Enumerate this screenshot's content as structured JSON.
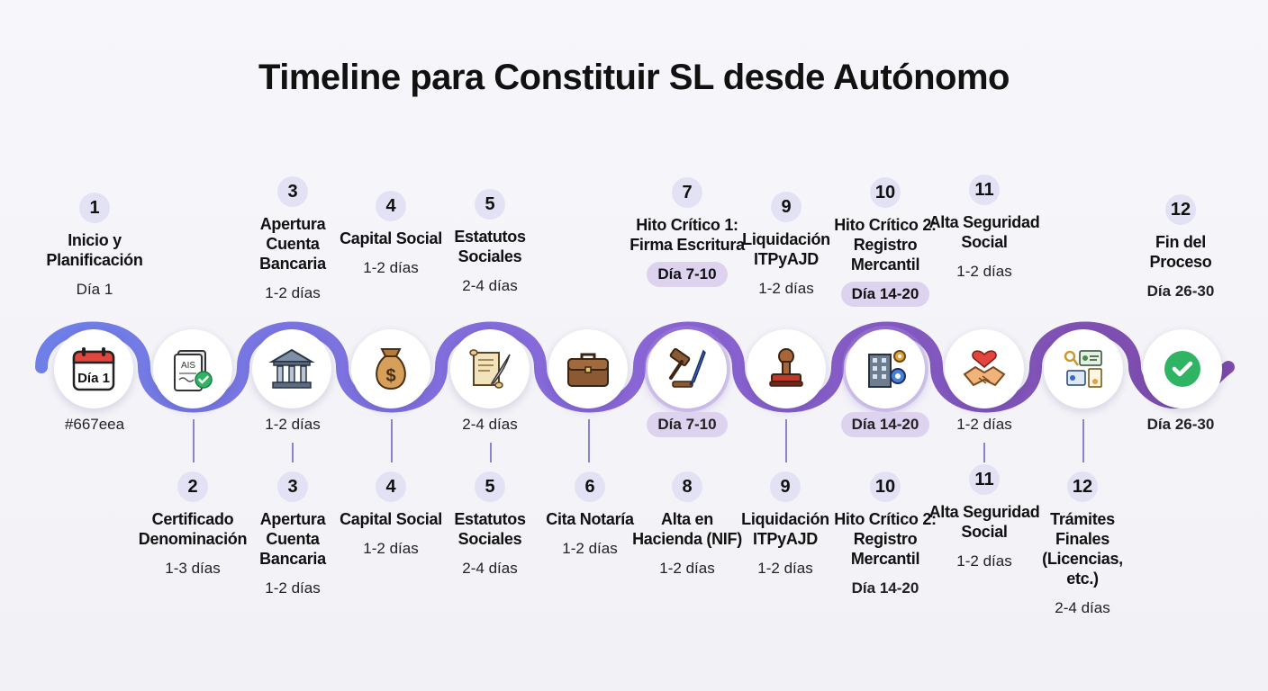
{
  "title": "Timeline para Constituir SL desde Autónomo",
  "icons": {
    "calendar_label": "Día 1",
    "certificate_label": "AIS"
  },
  "top_steps": [
    {
      "num": "1",
      "label": "Inicio y Planificación",
      "dur": "Día 1"
    },
    {
      "num": "3",
      "label": "Apertura Cuenta Bancaria",
      "dur": "1-2 días"
    },
    {
      "num": "4",
      "label": "Capital Social",
      "dur": "1-2 días"
    },
    {
      "num": "5",
      "label": "Estatutos Sociales",
      "dur": "2-4 días"
    },
    {
      "num": "7",
      "label": "Hito Crítico 1: Firma Escritura",
      "dur": "Día 7-10"
    },
    {
      "num": "9",
      "label": "Liquidación ITPyAJD",
      "dur": "1-2 días"
    },
    {
      "num": "10",
      "label": "Hito Crítico 2: Registro Mercantil",
      "dur": "Día 14-20"
    },
    {
      "num": "11",
      "label": "Alta Seguridad Social",
      "dur": "1-2 días"
    },
    {
      "num": "12",
      "label": "Fin del Proceso",
      "dur": "Día 26-30"
    }
  ],
  "mid_labels": [
    "#667eea",
    "1-2 días",
    "2-4 días",
    "Día 7-10",
    "Día 14-20",
    "1-2 días",
    "Día 26-30"
  ],
  "bottom_steps": [
    {
      "num": "2",
      "label": "Certificado Denominación",
      "dur": "1-3 días"
    },
    {
      "num": "3",
      "label": "Apertura Cuenta Bancaria",
      "dur": "1-2 días"
    },
    {
      "num": "4",
      "label": "Capital Social",
      "dur": "1-2 días"
    },
    {
      "num": "5",
      "label": "Estatutos Sociales",
      "dur": "2-4 días"
    },
    {
      "num": "6",
      "label": "Cita Notaría",
      "dur": "1-2 días"
    },
    {
      "num": "8",
      "label": "Alta en Hacienda (NIF)",
      "dur": "1-2 días"
    },
    {
      "num": "9",
      "label": "Liquidación ITPyAJD",
      "dur": "1-2 días"
    },
    {
      "num": "10",
      "label": "Hito Crítico 2: Registro Mercantil",
      "dur": "Día 14-20"
    },
    {
      "num": "11",
      "label": "Alta Seguridad Social",
      "dur": "1-2 días"
    },
    {
      "num": "12",
      "label": "Trámites Finales (Licencias, etc.)",
      "dur": "2-4 días"
    }
  ],
  "colors": {
    "track_start": "#6f7fe8",
    "track_end": "#7c4aa8",
    "milestone_pill": "#ddd3ef",
    "number_badge": "#e2e2f4",
    "success_green": "#2fb463"
  }
}
